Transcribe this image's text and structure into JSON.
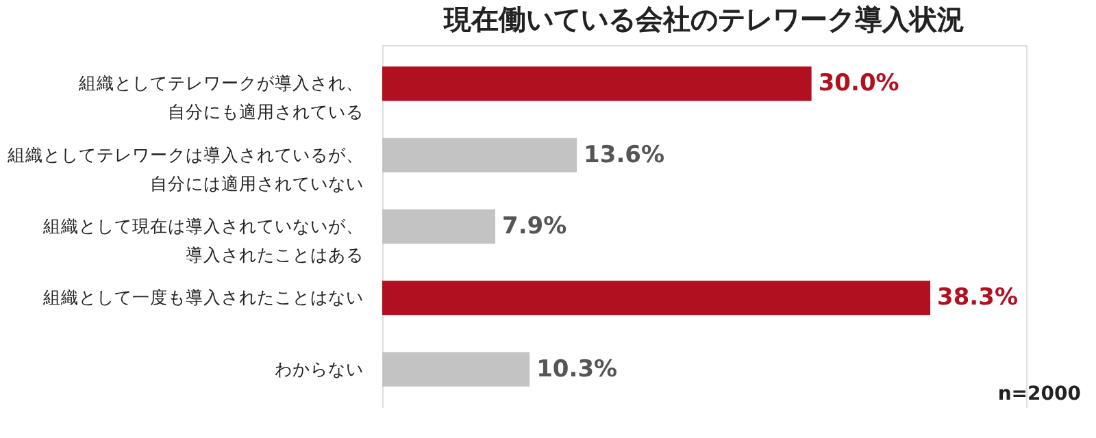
{
  "chart_data": {
    "type": "bar",
    "orientation": "horizontal",
    "title": "現在働いている会社のテレワーク導入状況",
    "categories": [
      "組織としてテレワークが導入され、自分にも適用されている",
      "組織としてテレワークは導入されているが、自分には適用されていない",
      "組織として現在は導入されていないが、導入されたことはある",
      "組織として一度も導入されたことはない",
      "わからない"
    ],
    "values": [
      30.0,
      13.6,
      7.9,
      38.3,
      10.3
    ],
    "colors": [
      "#b0101f",
      "#c3c3c3",
      "#c3c3c3",
      "#b0101f",
      "#c3c3c3"
    ],
    "value_labels": [
      "30.0%",
      "13.6%",
      "7.9%",
      "38.3%",
      "10.3%"
    ],
    "xlim": [
      0,
      45
    ],
    "tick_labels": "y",
    "annotations": [
      "n=2000"
    ]
  }
}
